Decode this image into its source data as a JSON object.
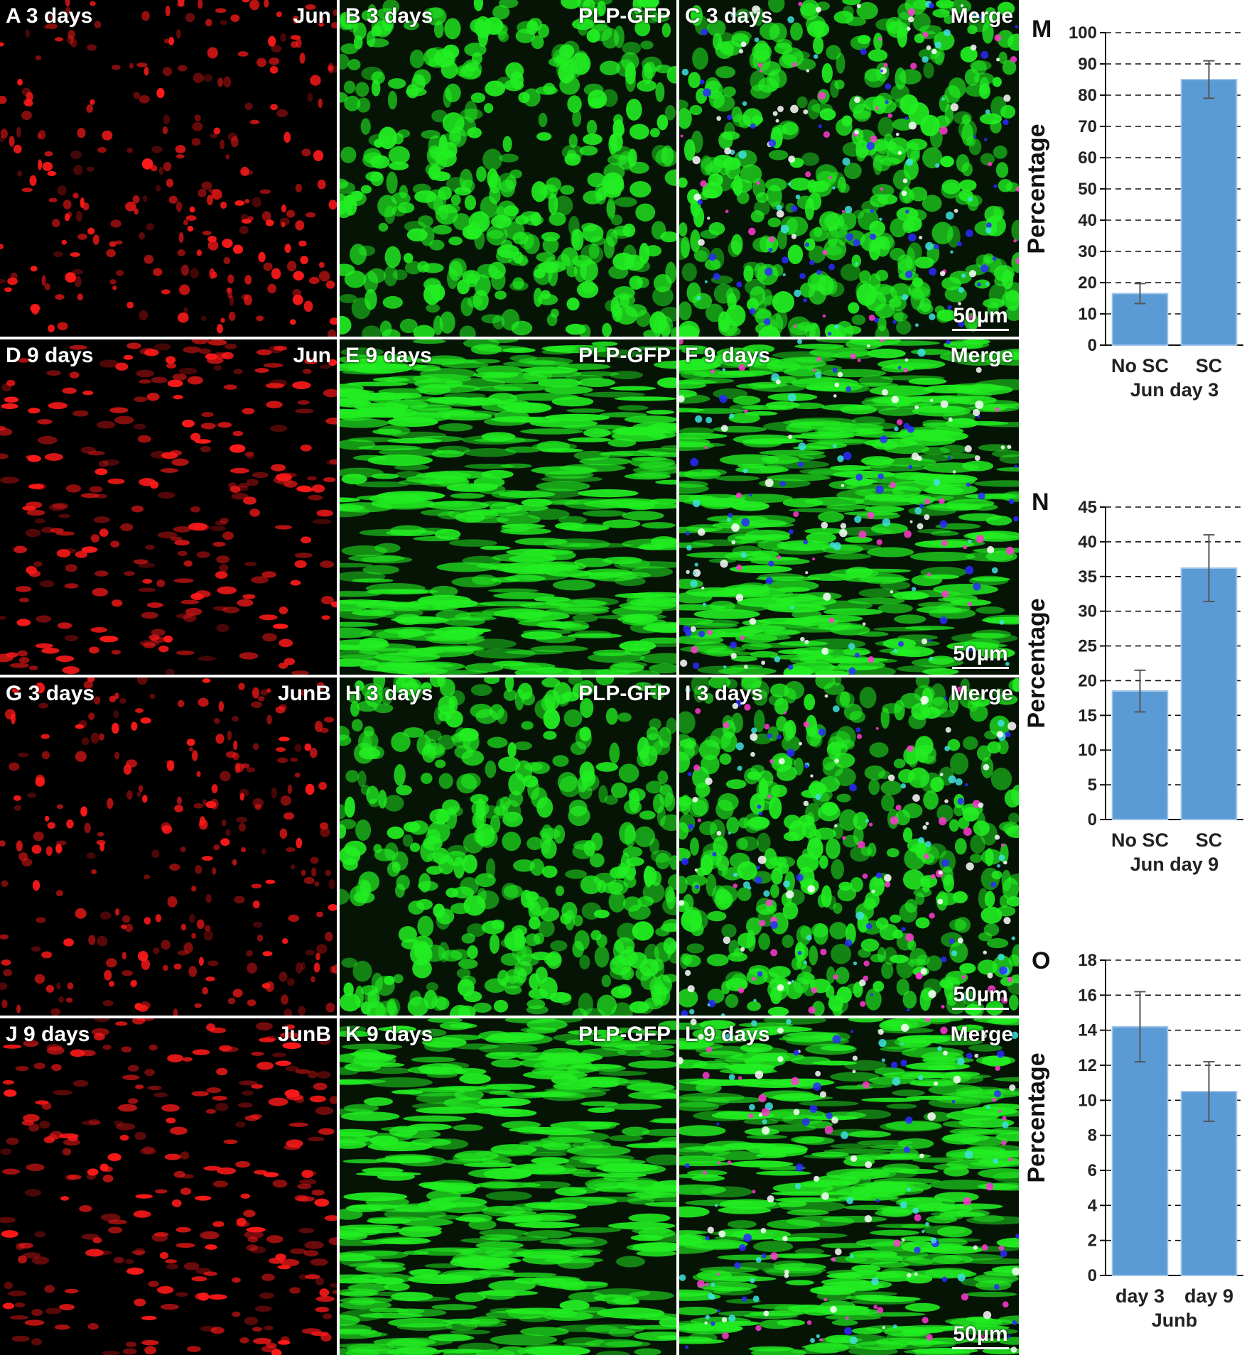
{
  "panels": [
    {
      "id": "A",
      "time": "3 days",
      "tag": "Jun",
      "color": "#ff1a1a",
      "kind": "red",
      "scale": ""
    },
    {
      "id": "B",
      "time": "3 days",
      "tag": "PLP-GFP",
      "color": "#22ee22",
      "kind": "green",
      "scale": ""
    },
    {
      "id": "C",
      "time": "3 days",
      "tag": "Merge",
      "color": "#22ee22",
      "kind": "merge",
      "scale": "50µm"
    },
    {
      "id": "D",
      "time": "9 days",
      "tag": "Jun",
      "color": "#ff1a1a",
      "kind": "red",
      "scale": ""
    },
    {
      "id": "E",
      "time": "9 days",
      "tag": "PLP-GFP",
      "color": "#22ee22",
      "kind": "green",
      "scale": ""
    },
    {
      "id": "F",
      "time": "9 days",
      "tag": "Merge",
      "color": "#22ee22",
      "kind": "merge",
      "scale": "50µm"
    },
    {
      "id": "G",
      "time": "3 days",
      "tag": "JunB",
      "color": "#ff1a1a",
      "kind": "red",
      "scale": ""
    },
    {
      "id": "H",
      "time": "3 days",
      "tag": "PLP-GFP",
      "color": "#22ee22",
      "kind": "green",
      "scale": ""
    },
    {
      "id": "I",
      "time": "3 days",
      "tag": "Merge",
      "color": "#22ee22",
      "kind": "merge",
      "scale": "50µm"
    },
    {
      "id": "J",
      "time": "9 days",
      "tag": "JunB",
      "color": "#ff1a1a",
      "kind": "red",
      "scale": ""
    },
    {
      "id": "K",
      "time": "9 days",
      "tag": "PLP-GFP",
      "color": "#22ee22",
      "kind": "green",
      "scale": ""
    },
    {
      "id": "L",
      "time": "9 days",
      "tag": "Merge",
      "color": "#22ee22",
      "kind": "merge",
      "scale": "50µm"
    }
  ],
  "chart_data": [
    {
      "panel_letter": "M",
      "type": "bar",
      "categories": [
        "No SC",
        "SC"
      ],
      "values": [
        16.5,
        85
      ],
      "error": [
        3.2,
        6
      ],
      "xlabel": "Jun day 3",
      "ylabel": "Percentage",
      "ylim": [
        0,
        100
      ],
      "yticks": [
        0,
        10,
        20,
        30,
        40,
        50,
        60,
        70,
        80,
        90,
        100
      ],
      "grid": "dashed horizontal",
      "bar_color": "#5b9bd5"
    },
    {
      "panel_letter": "N",
      "type": "bar",
      "categories": [
        "No SC",
        "SC"
      ],
      "values": [
        18.5,
        36.2
      ],
      "error": [
        3,
        4.8
      ],
      "xlabel": "Jun day 9",
      "ylabel": "Percentage",
      "ylim": [
        0,
        45
      ],
      "yticks": [
        0,
        5,
        10,
        15,
        20,
        25,
        30,
        35,
        40,
        45
      ],
      "grid": "dashed horizontal",
      "bar_color": "#5b9bd5"
    },
    {
      "panel_letter": "O",
      "type": "bar",
      "categories": [
        "day 3",
        "day 9"
      ],
      "values": [
        14.2,
        10.5
      ],
      "error": [
        2,
        1.7
      ],
      "xlabel": "Junb",
      "ylabel": "Percentage",
      "ylim": [
        0,
        18
      ],
      "yticks": [
        0,
        2,
        4,
        6,
        8,
        10,
        12,
        14,
        16,
        18
      ],
      "grid": "dashed horizontal",
      "bar_color": "#5b9bd5"
    }
  ]
}
